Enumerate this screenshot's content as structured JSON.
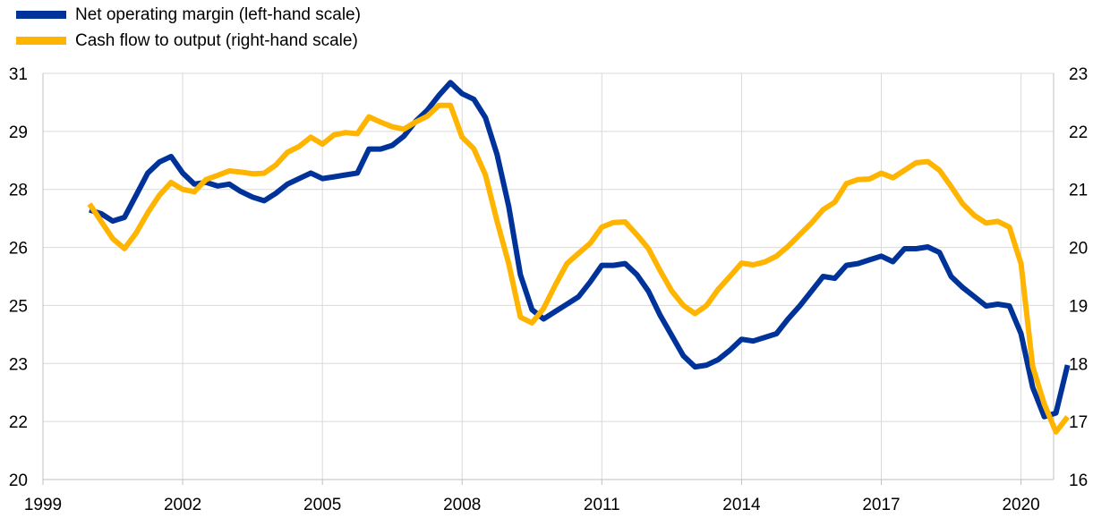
{
  "chart_data": {
    "type": "line",
    "title": "",
    "xlabel": "",
    "ylabel_left": "",
    "ylabel_right": "",
    "x_ticks": [
      "1999",
      "2002",
      "2005",
      "2008",
      "2011",
      "2014",
      "2017",
      "2020"
    ],
    "y_left_ticks": [
      "20",
      "22",
      "23",
      "25",
      "26",
      "28",
      "29",
      "31"
    ],
    "y_right_ticks": [
      "16",
      "17",
      "18",
      "19",
      "20",
      "21",
      "22",
      "23"
    ],
    "x_range": [
      1999.0,
      2020.7
    ],
    "y_left_range": [
      20.0,
      31.0
    ],
    "y_right_range": [
      16.0,
      23.0
    ],
    "grid": true,
    "legend_position": "top-left",
    "series": [
      {
        "name": "Net operating margin (left-hand scale)",
        "axis": "left",
        "color": "#003399",
        "x": [
          2000.0,
          2000.25,
          2000.5,
          2000.75,
          2001.0,
          2001.25,
          2001.5,
          2001.75,
          2002.0,
          2002.25,
          2002.5,
          2002.75,
          2003.0,
          2003.25,
          2003.5,
          2003.75,
          2004.0,
          2004.25,
          2004.5,
          2004.75,
          2005.0,
          2005.25,
          2005.5,
          2005.75,
          2006.0,
          2006.25,
          2006.5,
          2006.75,
          2007.0,
          2007.25,
          2007.5,
          2007.75,
          2008.0,
          2008.25,
          2008.5,
          2008.75,
          2009.0,
          2009.25,
          2009.5,
          2009.75,
          2010.0,
          2010.25,
          2010.5,
          2010.75,
          2011.0,
          2011.25,
          2011.5,
          2011.75,
          2012.0,
          2012.25,
          2012.5,
          2012.75,
          2013.0,
          2013.25,
          2013.5,
          2013.75,
          2014.0,
          2014.25,
          2014.5,
          2014.75,
          2015.0,
          2015.25,
          2015.5,
          2015.75,
          2016.0,
          2016.25,
          2016.5,
          2016.75,
          2017.0,
          2017.25,
          2017.5,
          2017.75,
          2018.0,
          2018.25,
          2018.5,
          2018.75,
          2019.0,
          2019.25,
          2019.5,
          2019.75,
          2020.0,
          2020.25,
          2020.5,
          2020.75,
          2021.0
        ],
        "values": [
          27.3,
          27.2,
          27.0,
          27.1,
          27.7,
          28.3,
          28.6,
          28.75,
          28.3,
          28.0,
          28.05,
          27.95,
          28.0,
          27.8,
          27.65,
          27.55,
          27.75,
          28.0,
          28.15,
          28.3,
          28.15,
          28.2,
          28.25,
          28.3,
          28.95,
          28.95,
          29.05,
          29.3,
          29.7,
          30.0,
          30.4,
          30.75,
          30.45,
          30.3,
          29.8,
          28.8,
          27.4,
          25.55,
          24.6,
          24.35,
          24.55,
          24.75,
          24.95,
          25.35,
          25.8,
          25.8,
          25.85,
          25.55,
          25.1,
          24.45,
          23.9,
          23.35,
          23.05,
          23.1,
          23.25,
          23.5,
          23.8,
          23.75,
          23.85,
          23.95,
          24.35,
          24.7,
          25.1,
          25.5,
          25.45,
          25.8,
          25.85,
          25.95,
          26.05,
          25.9,
          26.25,
          26.25,
          26.3,
          26.15,
          25.5,
          25.2,
          24.95,
          24.7,
          24.75,
          24.7,
          23.95,
          22.5,
          21.7,
          21.8,
          23.1
        ]
      },
      {
        "name": "Cash flow to output (right-hand scale)",
        "axis": "right",
        "color": "#FFB400",
        "x": [
          2000.0,
          2000.25,
          2000.5,
          2000.75,
          2001.0,
          2001.25,
          2001.5,
          2001.75,
          2002.0,
          2002.25,
          2002.5,
          2002.75,
          2003.0,
          2003.25,
          2003.5,
          2003.75,
          2004.0,
          2004.25,
          2004.5,
          2004.75,
          2005.0,
          2005.25,
          2005.5,
          2005.75,
          2006.0,
          2006.25,
          2006.5,
          2006.75,
          2007.0,
          2007.25,
          2007.5,
          2007.75,
          2008.0,
          2008.25,
          2008.5,
          2008.75,
          2009.0,
          2009.25,
          2009.5,
          2009.75,
          2010.0,
          2010.25,
          2010.5,
          2010.75,
          2011.0,
          2011.25,
          2011.5,
          2011.75,
          2012.0,
          2012.25,
          2012.5,
          2012.75,
          2013.0,
          2013.25,
          2013.5,
          2013.75,
          2014.0,
          2014.25,
          2014.5,
          2014.75,
          2015.0,
          2015.25,
          2015.5,
          2015.75,
          2016.0,
          2016.25,
          2016.5,
          2016.75,
          2017.0,
          2017.25,
          2017.5,
          2017.75,
          2018.0,
          2018.25,
          2018.5,
          2018.75,
          2019.0,
          2019.25,
          2019.5,
          2019.75,
          2020.0,
          2020.25,
          2020.5,
          2020.75,
          2021.0
        ],
        "values": [
          20.75,
          20.45,
          20.15,
          19.98,
          20.25,
          20.6,
          20.9,
          21.12,
          21.0,
          20.96,
          21.17,
          21.24,
          21.32,
          21.3,
          21.27,
          21.28,
          21.42,
          21.64,
          21.74,
          21.9,
          21.78,
          21.94,
          21.98,
          21.96,
          22.25,
          22.16,
          22.08,
          22.04,
          22.16,
          22.26,
          22.45,
          22.45,
          21.9,
          21.7,
          21.25,
          20.45,
          19.72,
          18.8,
          18.7,
          18.95,
          19.35,
          19.72,
          19.9,
          20.07,
          20.35,
          20.43,
          20.44,
          20.22,
          19.98,
          19.6,
          19.25,
          19.0,
          18.86,
          19.0,
          19.28,
          19.5,
          19.73,
          19.7,
          19.75,
          19.85,
          20.02,
          20.22,
          20.42,
          20.65,
          20.78,
          21.1,
          21.17,
          21.18,
          21.28,
          21.2,
          21.33,
          21.46,
          21.48,
          21.33,
          21.05,
          20.75,
          20.55,
          20.42,
          20.45,
          20.35,
          19.72,
          17.95,
          17.3,
          16.82,
          17.08
        ]
      }
    ]
  }
}
